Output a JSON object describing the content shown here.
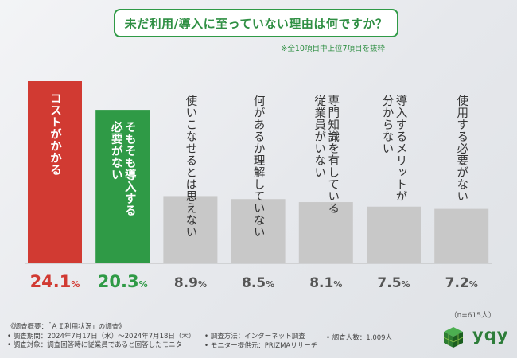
{
  "title": "未だ利用/導入に至っていない理由は何ですか？",
  "note": "※全10項目中上位7項目を抜粋",
  "sample_size": "（n=615人）",
  "colors": {
    "top1": "#d13a32",
    "top2": "#2f9a46",
    "rest": "#c8c8c8",
    "value_top1": "#d13a32",
    "value_top2": "#2f9a46",
    "value_rest": "#555555"
  },
  "chart_data": {
    "type": "bar",
    "title": "未だ利用/導入に至っていない理由は何ですか？",
    "unit": "%",
    "ylim": [
      0,
      30
    ],
    "categories": [
      [
        "コストがかかる"
      ],
      [
        "そもそも導入する",
        "必要がない"
      ],
      [
        "使いこなせるとは思えない"
      ],
      [
        "何があるか理解していない"
      ],
      [
        "専門知識を有している",
        "従業員がいない"
      ],
      [
        "導入するメリットが",
        "分からない"
      ],
      [
        "使用する必要がない"
      ]
    ],
    "values": [
      24.1,
      20.3,
      8.9,
      8.5,
      8.1,
      7.5,
      7.2
    ],
    "value_labels": [
      {
        "num": "24.1",
        "unit": "%"
      },
      {
        "num": "20.3",
        "unit": "%"
      },
      {
        "num": "8.9",
        "unit": "%"
      },
      {
        "num": "8.5",
        "unit": "%"
      },
      {
        "num": "8.1",
        "unit": "%"
      },
      {
        "num": "7.5",
        "unit": "%"
      },
      {
        "num": "7.2",
        "unit": "%"
      }
    ]
  },
  "footer": {
    "overview": "《調査概要：「ＡＩ利用状況」の調査》",
    "period": "• 調査期間：2024年7月17日（水）〜2024年7月18日（木）",
    "target": "• 調査対象：調査回答時に従業員であると回答したモニター",
    "method": "• 調査方法：インターネット調査",
    "monitor": "• モニター提供元：PRIZMAリサーチ",
    "count": "• 調査人数：1,009人"
  },
  "logo": {
    "text": "yqy",
    "icon": "cube-logo-icon"
  }
}
